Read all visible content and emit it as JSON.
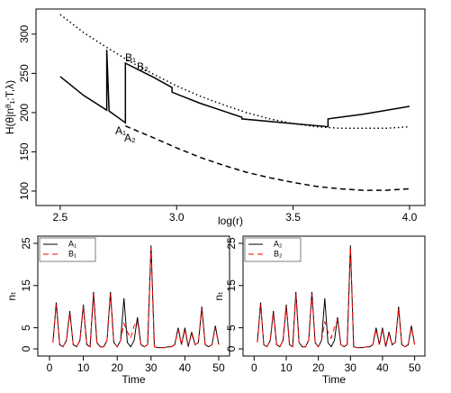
{
  "chart_data": [
    {
      "type": "line",
      "xlabel": "log(r)",
      "ylabel": "H(θ|nᶿ₁:T,λ)",
      "xlim": [
        2.396,
        4.066
      ],
      "ylim": [
        81.6,
        332
      ],
      "xticks": [
        2.5,
        {
          "value": 3.0,
          "label": "3.0"
        },
        3.5,
        {
          "value": 4.0,
          "label": "4.0"
        }
      ],
      "yticks": [
        100,
        150,
        200,
        250,
        300
      ],
      "annotations": [
        "A₁",
        "A₂",
        "B₁",
        "B₂"
      ],
      "series": [
        {
          "color": "#000000",
          "linestyle": "dotted",
          "x": [
            2.5,
            2.6,
            2.7,
            2.8,
            2.9,
            3.0,
            3.1,
            3.2,
            3.3,
            3.4,
            3.5,
            3.6,
            3.7,
            3.8,
            3.9,
            4.0
          ],
          "values": [
            325,
            302,
            283,
            265,
            249,
            234,
            221,
            210,
            200,
            192,
            186,
            182,
            180,
            180,
            180,
            182
          ]
        },
        {
          "color": "#000000",
          "linestyle": "solid",
          "x": [
            2.5,
            2.6,
            2.7,
            2.7,
            2.71,
            2.78,
            2.78,
            2.9,
            2.98,
            2.98,
            3.1,
            3.28,
            3.28,
            3.5,
            3.65,
            3.65,
            3.8,
            4.0
          ],
          "values": [
            246,
            222,
            203,
            280,
            202,
            187,
            263,
            245,
            232,
            226,
            212,
            194,
            192,
            186,
            182,
            192,
            198,
            208
          ]
        },
        {
          "color": "#000000",
          "linestyle": "dashed",
          "x": [
            2.78,
            2.9,
            3.0,
            3.1,
            3.2,
            3.3,
            3.4,
            3.5,
            3.6,
            3.7,
            3.8,
            3.9,
            4.0
          ],
          "values": [
            183,
            168,
            155,
            143,
            133,
            124,
            117,
            111,
            106,
            103,
            101,
            101,
            103
          ]
        }
      ]
    },
    {
      "type": "line",
      "xlabel": "Time",
      "ylabel": "nₜ",
      "legend": "top-left",
      "xlim": [
        -3.46,
        53.2
      ],
      "ylim": [
        -1.7,
        26.7
      ],
      "xticks": [
        0,
        10,
        20,
        30,
        40,
        50
      ],
      "yticks": [
        0,
        5,
        15,
        25
      ],
      "x": [
        1,
        2,
        3,
        4,
        5,
        6,
        7,
        8,
        9,
        10,
        11,
        12,
        13,
        14,
        15,
        16,
        17,
        18,
        19,
        20,
        21,
        22,
        23,
        24,
        25,
        26,
        27,
        28,
        29,
        30,
        31,
        32,
        33,
        34,
        35,
        36,
        37,
        38,
        39,
        40,
        41,
        42,
        43,
        44,
        45,
        46,
        47,
        48,
        49,
        50
      ],
      "series": [
        {
          "name": "A₁",
          "color": "#000000",
          "linestyle": "solid",
          "values": [
            1.5,
            11,
            1,
            0.5,
            2,
            9,
            1,
            0.5,
            2,
            10.5,
            1,
            0.5,
            13.5,
            1.5,
            0.5,
            0.5,
            2,
            13.5,
            1.5,
            0.5,
            2,
            12,
            1.5,
            0.5,
            2,
            7.5,
            1,
            0.5,
            1,
            24.5,
            0.5,
            0.3,
            0.3,
            0.3,
            0.5,
            0.5,
            1,
            5,
            1,
            5,
            0.5,
            4,
            1,
            1.5,
            10,
            1,
            0.5,
            1,
            5.5,
            1
          ]
        },
        {
          "name": "B₁",
          "color": "#ff0000",
          "linestyle": "dashed",
          "values": [
            1.5,
            10.5,
            1,
            0.5,
            2,
            8.5,
            1,
            0.5,
            2,
            10,
            1,
            0.5,
            13,
            1.5,
            0.5,
            0.5,
            2,
            13,
            1.5,
            0.5,
            2,
            6,
            4,
            2.5,
            5.5,
            6.5,
            1,
            0.5,
            1,
            24,
            0.5,
            0.3,
            0.3,
            0.3,
            0.5,
            0.5,
            1,
            4.5,
            1,
            4.5,
            0.5,
            3.5,
            1,
            1.5,
            9.5,
            1,
            0.5,
            1,
            5,
            1
          ]
        }
      ]
    },
    {
      "type": "line",
      "xlabel": "Time",
      "ylabel": "nₜ",
      "legend": "top-left",
      "xlim": [
        -3.46,
        53.2
      ],
      "ylim": [
        -1.7,
        26.7
      ],
      "xticks": [
        0,
        10,
        20,
        30,
        40,
        50
      ],
      "yticks": [
        0,
        5,
        15,
        25
      ],
      "x": [
        1,
        2,
        3,
        4,
        5,
        6,
        7,
        8,
        9,
        10,
        11,
        12,
        13,
        14,
        15,
        16,
        17,
        18,
        19,
        20,
        21,
        22,
        23,
        24,
        25,
        26,
        27,
        28,
        29,
        30,
        31,
        32,
        33,
        34,
        35,
        36,
        37,
        38,
        39,
        40,
        41,
        42,
        43,
        44,
        45,
        46,
        47,
        48,
        49,
        50
      ],
      "series": [
        {
          "name": "A₂",
          "color": "#000000",
          "linestyle": "solid",
          "values": [
            1.5,
            11,
            1,
            0.5,
            2,
            9,
            1,
            0.5,
            2,
            10.5,
            1,
            0.5,
            13.5,
            1.5,
            0.5,
            0.5,
            2,
            13.5,
            1.5,
            0.5,
            2,
            12,
            1.5,
            0.5,
            2,
            7.5,
            1,
            0.5,
            1,
            24.5,
            0.5,
            0.3,
            0.3,
            0.3,
            0.5,
            0.5,
            1,
            5,
            1,
            5,
            0.5,
            4,
            1,
            1.5,
            10,
            1,
            0.5,
            1,
            5.5,
            1
          ]
        },
        {
          "name": "B₂",
          "color": "#ff0000",
          "linestyle": "dashed",
          "values": [
            1.5,
            10.5,
            1,
            0.5,
            2,
            8.5,
            1,
            0.5,
            2,
            10,
            1,
            0.5,
            13,
            1.5,
            0.5,
            0.5,
            2,
            13,
            1.5,
            0.5,
            2,
            6.5,
            4,
            2.5,
            5,
            7,
            1,
            0.5,
            1,
            24,
            0.5,
            0.3,
            0.3,
            0.3,
            0.5,
            0.5,
            1,
            4.5,
            1,
            4.5,
            0.5,
            3.5,
            1,
            1.5,
            9.5,
            1,
            0.5,
            1,
            5,
            1
          ]
        }
      ]
    }
  ]
}
